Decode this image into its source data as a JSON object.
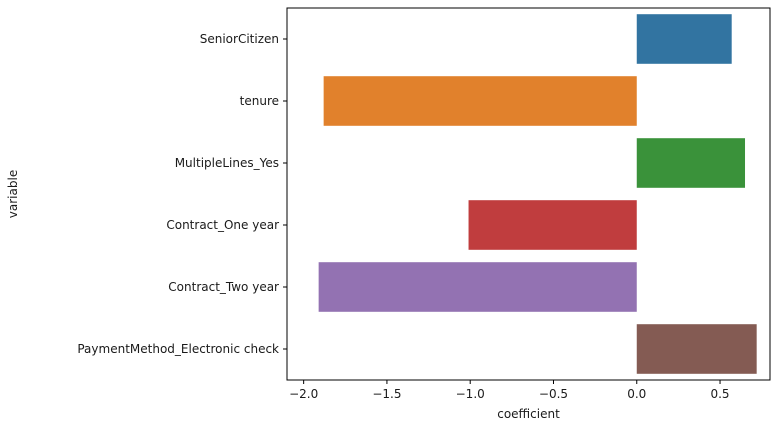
{
  "chart_data": {
    "type": "bar",
    "orientation": "horizontal",
    "categories": [
      "SeniorCitizen",
      "tenure",
      "MultipleLines_Yes",
      "Contract_One year",
      "Contract_Two year",
      "PaymentMethod_Electronic check"
    ],
    "values": [
      0.57,
      -1.88,
      0.65,
      -1.01,
      -1.91,
      0.72
    ],
    "colors": [
      "#3274a1",
      "#e1812c",
      "#3a923a",
      "#c03d3e",
      "#9372b2",
      "#845b53"
    ],
    "xlabel": "coefficient",
    "ylabel": "variable",
    "xlim": [
      -2.1,
      0.8
    ],
    "xticks": [
      -2.0,
      -1.5,
      -1.0,
      -0.5,
      0.0,
      0.5
    ],
    "xtick_labels": [
      "−2.0",
      "−1.5",
      "−1.0",
      "−0.5",
      "0.0",
      "0.5"
    ],
    "grid": false,
    "legend": "none"
  }
}
